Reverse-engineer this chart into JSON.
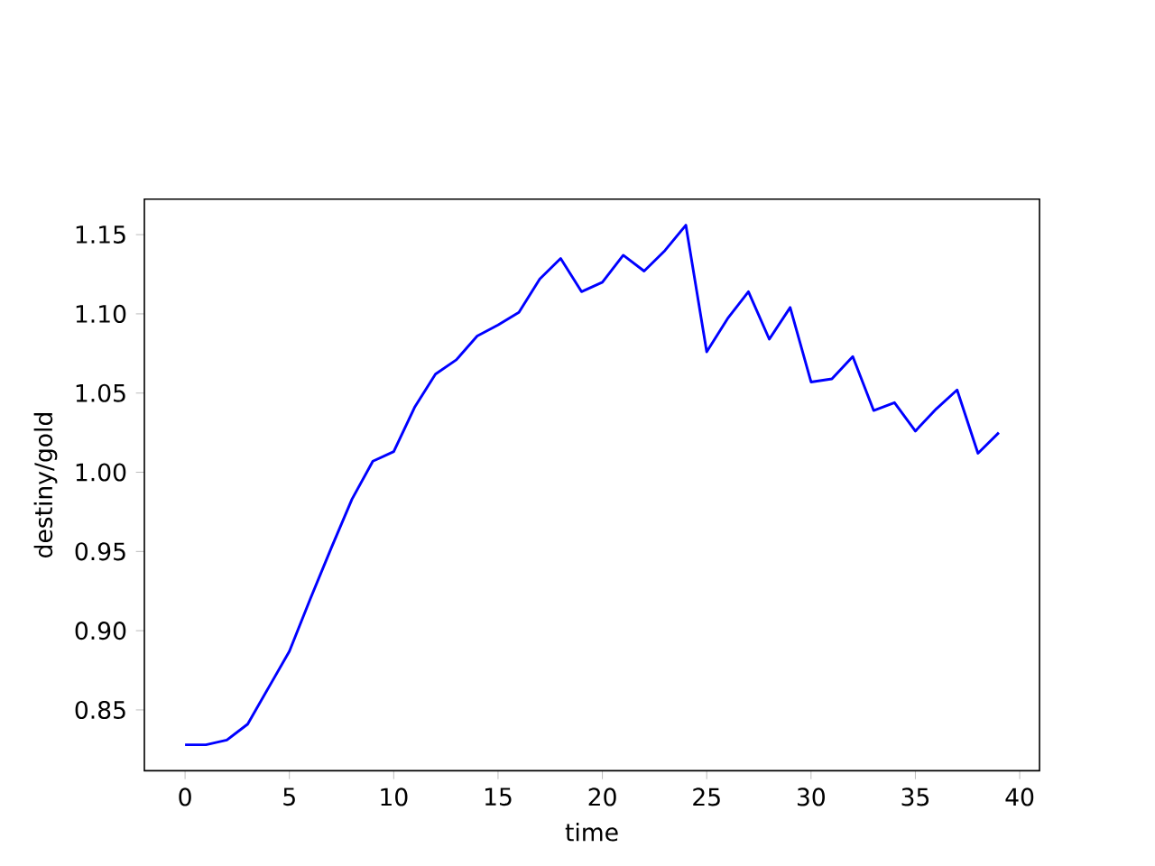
{
  "chart_data": {
    "type": "line",
    "xlabel": "time",
    "ylabel": "destiny/gold",
    "x": [
      0,
      1,
      2,
      3,
      4,
      5,
      6,
      7,
      8,
      9,
      10,
      11,
      12,
      13,
      14,
      15,
      16,
      17,
      18,
      19,
      20,
      21,
      22,
      23,
      24,
      25,
      26,
      27,
      28,
      29,
      30,
      31,
      32,
      33,
      34,
      35,
      36,
      37,
      38,
      39
    ],
    "series": [
      {
        "color": "#0000ff",
        "values": [
          0.828,
          0.828,
          0.831,
          0.841,
          0.864,
          0.887,
          0.92,
          0.952,
          0.983,
          1.007,
          1.013,
          1.041,
          1.062,
          1.071,
          1.086,
          1.093,
          1.101,
          1.122,
          1.135,
          1.114,
          1.12,
          1.137,
          1.127,
          1.14,
          1.156,
          1.076,
          1.097,
          1.114,
          1.084,
          1.104,
          1.057,
          1.059,
          1.073,
          1.039,
          1.044,
          1.026,
          1.04,
          1.052,
          1.012,
          1.025
        ]
      }
    ],
    "xlim": [
      -1.95,
      40.95
    ],
    "ylim": [
      0.8116,
      1.1724
    ],
    "xticks": [
      0,
      5,
      10,
      15,
      20,
      25,
      30,
      35,
      40
    ],
    "yticks": [
      {
        "value": 0.85,
        "label": "0.85"
      },
      {
        "value": 0.9,
        "label": "0.90"
      },
      {
        "value": 0.95,
        "label": "0.95"
      },
      {
        "value": 1.0,
        "label": "1.00"
      },
      {
        "value": 1.05,
        "label": "1.05"
      },
      {
        "value": 1.1,
        "label": "1.10"
      },
      {
        "value": 1.15,
        "label": "1.15"
      }
    ],
    "marker": "none",
    "line_style": "solid"
  }
}
